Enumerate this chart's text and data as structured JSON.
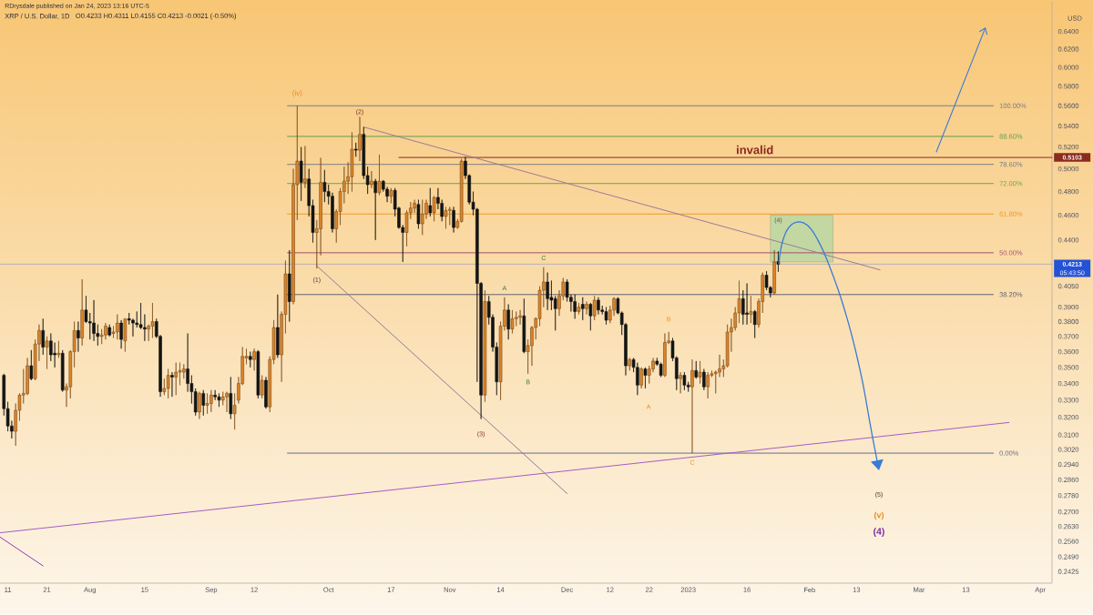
{
  "chart_data": {
    "type": "candlestick",
    "title": "XRP / U.S. Dollar, 1D",
    "subtitle": "O0.4233 H0.4311 L0.4155 C0.4213 -0.0021 (-0.50%)",
    "ylabel": "USD",
    "log": "y",
    "xlim": [
      "2022-07-09",
      "2023-04-04"
    ],
    "ylim": [
      0.2375,
      0.675
    ],
    "xticks": [
      {
        "value": "2022-07-11",
        "label": "11"
      },
      {
        "value": "2022-07-21",
        "label": "21"
      },
      {
        "value": "2022-08-01",
        "label": "Aug"
      },
      {
        "value": "2022-08-15",
        "label": "15"
      },
      {
        "value": "2022-09-01",
        "label": "Sep"
      },
      {
        "value": "2022-09-12",
        "label": "12"
      },
      {
        "value": "2022-10-01",
        "label": "Oct"
      },
      {
        "value": "2022-10-17",
        "label": "17"
      },
      {
        "value": "2022-11-01",
        "label": "Nov"
      },
      {
        "value": "2022-11-14",
        "label": "14"
      },
      {
        "value": "2022-12-01",
        "label": "Dec"
      },
      {
        "value": "2022-12-12",
        "label": "12"
      },
      {
        "value": "2022-12-22",
        "label": "22"
      },
      {
        "value": "2023-01-01",
        "label": "2023"
      },
      {
        "value": "2023-01-16",
        "label": "16"
      },
      {
        "value": "2023-02-01",
        "label": "Feb"
      },
      {
        "value": "2023-02-13",
        "label": "13"
      },
      {
        "value": "2023-03-01",
        "label": "Mar"
      },
      {
        "value": "2023-03-13",
        "label": "13"
      },
      {
        "value": "2023-04-01",
        "label": "Apr"
      }
    ],
    "yticks": [
      {
        "value": 0.64,
        "label": "0.6400"
      },
      {
        "value": 0.62,
        "label": "0.6200"
      },
      {
        "value": 0.6,
        "label": "0.6000"
      },
      {
        "value": 0.58,
        "label": "0.5800"
      },
      {
        "value": 0.56,
        "label": "0.5600"
      },
      {
        "value": 0.54,
        "label": "0.5400"
      },
      {
        "value": 0.52,
        "label": "0.5200"
      },
      {
        "value": 0.5,
        "label": "0.5000"
      },
      {
        "value": 0.48,
        "label": "0.4800"
      },
      {
        "value": 0.46,
        "label": "0.4600"
      },
      {
        "value": 0.44,
        "label": "0.4400"
      },
      {
        "value": 0.405,
        "label": "0.4050"
      },
      {
        "value": 0.39,
        "label": "0.3900"
      },
      {
        "value": 0.38,
        "label": "0.3800"
      },
      {
        "value": 0.37,
        "label": "0.3700"
      },
      {
        "value": 0.36,
        "label": "0.3600"
      },
      {
        "value": 0.35,
        "label": "0.3500"
      },
      {
        "value": 0.34,
        "label": "0.3400"
      },
      {
        "value": 0.33,
        "label": "0.3300"
      },
      {
        "value": 0.32,
        "label": "0.3200"
      },
      {
        "value": 0.31,
        "label": "0.3100"
      },
      {
        "value": 0.302,
        "label": "0.3020"
      },
      {
        "value": 0.294,
        "label": "0.2940"
      },
      {
        "value": 0.286,
        "label": "0.2860"
      },
      {
        "value": 0.278,
        "label": "0.2780"
      },
      {
        "value": 0.27,
        "label": "0.2700"
      },
      {
        "value": 0.263,
        "label": "0.2630"
      },
      {
        "value": 0.256,
        "label": "0.2560"
      },
      {
        "value": 0.249,
        "label": "0.2490"
      },
      {
        "value": 0.2425,
        "label": "0.2425"
      }
    ],
    "ref_lines": [
      {
        "axis": "y",
        "value": 0.4213,
        "label": "0.4213",
        "color": "#98a0b8"
      }
    ],
    "annotations": [
      "RDrysdale published on Jan 24, 2023 13:16 UTC-5",
      "05:43:50",
      {
        "text": "invalid",
        "x": "2023-01-18",
        "y": 0.5103
      },
      {
        "text": "(iv)",
        "x": "2022-09-23",
        "y": 0.56
      },
      {
        "text": "(2)",
        "x": "2022-10-09",
        "y": 0.549
      },
      {
        "text": "(1)",
        "x": "2022-09-28",
        "y": 0.418
      },
      {
        "text": "(3)",
        "x": "2022-11-09",
        "y": 0.319
      },
      {
        "text": "A",
        "x": "2022-11-15",
        "y": 0.397
      },
      {
        "text": "B",
        "x": "2022-11-21",
        "y": 0.346
      },
      {
        "text": "C",
        "x": "2022-11-25",
        "y": 0.419
      },
      "A",
      {
        "text": "B",
        "x": "2022-12-27",
        "y": 0.373
      },
      {
        "text": "C",
        "x": "2023-01-02",
        "y": 0.3
      },
      {
        "text": "(4)",
        "x": "2023-01-24",
        "y": 0.46
      },
      "(5)",
      "(v)",
      "(4)"
    ],
    "series": [
      {
        "type": "line",
        "color": "#c3d7a2",
        "x": [
          "2023-01-22",
          "2023-02-07"
        ],
        "values": [
          null,
          null
        ],
        "lower": [
          0.423,
          0.423
        ],
        "upper": [
          0.46,
          0.46
        ]
      },
      {
        "type": "line",
        "name": "100.00%",
        "color": "#7a7d88",
        "x": [
          "2022-09-20T12:00",
          "2023-03-20"
        ],
        "values": [
          0.56,
          0.56
        ]
      },
      {
        "type": "line",
        "name": "88.60%",
        "color": "#5e9e50",
        "x": [
          "2022-09-20T12:00",
          "2023-03-20"
        ],
        "values": [
          0.53,
          0.53
        ]
      },
      {
        "type": "line",
        "name": "78.60%",
        "color": "#7a7d88",
        "x": [
          "2022-09-20T12:00",
          "2023-03-20"
        ],
        "values": [
          0.504,
          0.504
        ]
      },
      {
        "type": "line",
        "name": "72.00%",
        "color": "#6aa84f",
        "x": [
          "2022-09-20T12:00",
          "2023-03-20"
        ],
        "values": [
          0.487,
          0.487
        ]
      },
      {
        "type": "line",
        "name": "61.80%",
        "color": "#eb9a2e",
        "x": [
          "2022-09-20T12:00",
          "2023-03-20"
        ],
        "values": [
          0.461,
          0.461
        ]
      },
      {
        "type": "line",
        "name": "50.00%",
        "color": "#a6506b",
        "x": [
          "2022-09-20T12:00",
          "2023-03-20"
        ],
        "values": [
          0.43,
          0.43
        ]
      },
      {
        "type": "line",
        "name": "38.20%",
        "color": "#5f6470",
        "x": [
          "2022-09-20T12:00",
          "2023-03-20"
        ],
        "values": [
          0.399,
          0.399
        ]
      },
      {
        "type": "line",
        "name": "0.00%",
        "color": "#5f7088",
        "x": [
          "2022-09-20T12:00",
          "2023-03-20"
        ],
        "values": [
          0.3,
          0.3
        ]
      },
      {
        "type": "line",
        "name": "0.5103",
        "color": "#8b2a1e",
        "x": [
          "2022-10-19",
          "2023-04-04"
        ],
        "values": [
          0.5103,
          0.5103
        ]
      },
      {
        "type": "line",
        "color": "#9b7a9b",
        "x": [
          "2022-10-10",
          "2023-02-19"
        ],
        "values": [
          0.539,
          0.417
        ]
      },
      {
        "type": "line",
        "color": "#8f7a95",
        "x": [
          "2022-09-28",
          "2022-12-01"
        ],
        "values": [
          0.42,
          0.279
        ]
      },
      {
        "type": "line",
        "color": "#a45cc6",
        "x": [
          "2022-07-09",
          "2023-03-24"
        ],
        "values": [
          0.26,
          0.317
        ]
      },
      {
        "type": "line",
        "color": "#8e3bb5",
        "x": [
          "2022-07-09",
          "2022-07-20"
        ],
        "values": [
          0.258,
          0.245
        ]
      },
      {
        "color": "#dc842a",
        "x": [
          "2022-07-13",
          "2022-07-14",
          "2022-07-15",
          "2022-07-16",
          "2022-07-18",
          "2022-07-19",
          "2022-07-21",
          "2022-07-24",
          "2022-07-26",
          "2022-07-27",
          "2022-07-28",
          "2022-07-30",
          "2022-08-04",
          "2022-08-05",
          "2022-08-07",
          "2022-08-08",
          "2022-08-10",
          "2022-08-16",
          "2022-08-17",
          "2022-08-20",
          "2022-08-21",
          "2022-08-23",
          "2022-08-24",
          "2022-08-25",
          "2022-08-29",
          "2022-08-31",
          "2022-09-01",
          "2022-09-04",
          "2022-09-05",
          "2022-09-07",
          "2022-09-08",
          "2022-09-09",
          "2022-09-10",
          "2022-09-12",
          "2022-09-14",
          "2022-09-16",
          "2022-09-17",
          "2022-09-19",
          "2022-09-20",
          "2022-09-22",
          "2022-09-23",
          "2022-09-25",
          "2022-09-28",
          "2022-09-29",
          "2022-10-03",
          "2022-10-04",
          "2022-10-05",
          "2022-10-06",
          "2022-10-07",
          "2022-10-09",
          "2022-10-12",
          "2022-10-14",
          "2022-10-17",
          "2022-10-21",
          "2022-10-22",
          "2022-10-23",
          "2022-10-25",
          "2022-10-26",
          "2022-10-28",
          "2022-10-31",
          "2022-11-01",
          "2022-11-03",
          "2022-11-04",
          "2022-11-10",
          "2022-11-14",
          "2022-11-15",
          "2022-11-17",
          "2022-11-18",
          "2022-11-19",
          "2022-11-21",
          "2022-11-22",
          "2022-11-23",
          "2022-11-24",
          "2022-11-25",
          "2022-11-29",
          "2022-11-30",
          "2022-12-04",
          "2022-12-06",
          "2022-12-08",
          "2022-12-12",
          "2022-12-13",
          "2022-12-17",
          "2022-12-20",
          "2022-12-22",
          "2022-12-23",
          "2022-12-26",
          "2022-12-27",
          "2022-12-30",
          "2023-01-02",
          "2023-01-04",
          "2023-01-06",
          "2023-01-07",
          "2023-01-08",
          "2023-01-09",
          "2023-01-10",
          "2023-01-11",
          "2023-01-12",
          "2023-01-13",
          "2023-01-14",
          "2023-01-17",
          "2023-01-19",
          "2023-01-20",
          "2023-01-23"
        ],
        "ohlc": [
          [
            0.312,
            0.328,
            0.304,
            0.324
          ],
          [
            0.324,
            0.334,
            0.318,
            0.333
          ],
          [
            0.333,
            0.349,
            0.328,
            0.334
          ],
          [
            0.334,
            0.356,
            0.333,
            0.351
          ],
          [
            0.343,
            0.368,
            0.342,
            0.365
          ],
          [
            0.365,
            0.378,
            0.354,
            0.374
          ],
          [
            0.363,
            0.37,
            0.349,
            0.367
          ],
          [
            0.358,
            0.367,
            0.356,
            0.359
          ],
          [
            0.336,
            0.34,
            0.326,
            0.338
          ],
          [
            0.338,
            0.361,
            0.331,
            0.36
          ],
          [
            0.36,
            0.38,
            0.35,
            0.374
          ],
          [
            0.369,
            0.41,
            0.364,
            0.388
          ],
          [
            0.37,
            0.375,
            0.365,
            0.371
          ],
          [
            0.371,
            0.379,
            0.368,
            0.377
          ],
          [
            0.372,
            0.377,
            0.369,
            0.373
          ],
          [
            0.373,
            0.385,
            0.368,
            0.379
          ],
          [
            0.367,
            0.382,
            0.36,
            0.382
          ],
          [
            0.375,
            0.378,
            0.367,
            0.377
          ],
          [
            0.377,
            0.393,
            0.369,
            0.38
          ],
          [
            0.335,
            0.343,
            0.333,
            0.337
          ],
          [
            0.337,
            0.349,
            0.331,
            0.345
          ],
          [
            0.344,
            0.353,
            0.333,
            0.347
          ],
          [
            0.347,
            0.353,
            0.339,
            0.348
          ],
          [
            0.347,
            0.352,
            0.343,
            0.349
          ],
          [
            0.323,
            0.335,
            0.319,
            0.334
          ],
          [
            0.327,
            0.334,
            0.322,
            0.328
          ],
          [
            0.328,
            0.336,
            0.323,
            0.333
          ],
          [
            0.33,
            0.335,
            0.327,
            0.332
          ],
          [
            0.332,
            0.335,
            0.323,
            0.334
          ],
          [
            0.322,
            0.334,
            0.313,
            0.327
          ],
          [
            0.33,
            0.344,
            0.328,
            0.34
          ],
          [
            0.34,
            0.363,
            0.339,
            0.357
          ],
          [
            0.356,
            0.362,
            0.352,
            0.357
          ],
          [
            0.355,
            0.362,
            0.348,
            0.36
          ],
          [
            0.333,
            0.345,
            0.331,
            0.342
          ],
          [
            0.326,
            0.357,
            0.323,
            0.355
          ],
          [
            0.355,
            0.381,
            0.352,
            0.376
          ],
          [
            0.358,
            0.387,
            0.341,
            0.385
          ],
          [
            0.385,
            0.424,
            0.372,
            0.414
          ],
          [
            0.394,
            0.5,
            0.392,
            0.486
          ],
          [
            0.486,
            0.56,
            0.456,
            0.507
          ],
          [
            0.488,
            0.521,
            0.483,
            0.491
          ],
          [
            0.446,
            0.456,
            0.418,
            0.449
          ],
          [
            0.449,
            0.51,
            0.428,
            0.488
          ],
          [
            0.449,
            0.465,
            0.438,
            0.463
          ],
          [
            0.463,
            0.483,
            0.452,
            0.48
          ],
          [
            0.48,
            0.502,
            0.47,
            0.489
          ],
          [
            0.489,
            0.506,
            0.478,
            0.493
          ],
          [
            0.493,
            0.534,
            0.48,
            0.518
          ],
          [
            0.517,
            0.549,
            0.507,
            0.532
          ],
          [
            0.486,
            0.498,
            0.483,
            0.489
          ],
          [
            0.479,
            0.513,
            0.477,
            0.489
          ],
          [
            0.476,
            0.483,
            0.47,
            0.481
          ],
          [
            0.446,
            0.464,
            0.435,
            0.462
          ],
          [
            0.462,
            0.471,
            0.457,
            0.466
          ],
          [
            0.466,
            0.473,
            0.462,
            0.47
          ],
          [
            0.453,
            0.473,
            0.444,
            0.461
          ],
          [
            0.461,
            0.473,
            0.457,
            0.47
          ],
          [
            0.462,
            0.476,
            0.455,
            0.475
          ],
          [
            0.459,
            0.467,
            0.449,
            0.464
          ],
          [
            0.464,
            0.467,
            0.452,
            0.465
          ],
          [
            0.45,
            0.457,
            0.449,
            0.455
          ],
          [
            0.455,
            0.509,
            0.454,
            0.507
          ],
          [
            0.333,
            0.402,
            0.329,
            0.394
          ],
          [
            0.341,
            0.38,
            0.33,
            0.377
          ],
          [
            0.377,
            0.397,
            0.374,
            0.388
          ],
          [
            0.375,
            0.388,
            0.372,
            0.382
          ],
          [
            0.382,
            0.387,
            0.377,
            0.383
          ],
          [
            0.383,
            0.388,
            0.378,
            0.384
          ],
          [
            0.36,
            0.368,
            0.346,
            0.364
          ],
          [
            0.364,
            0.377,
            0.351,
            0.376
          ],
          [
            0.376,
            0.383,
            0.368,
            0.382
          ],
          [
            0.382,
            0.405,
            0.377,
            0.402
          ],
          [
            0.402,
            0.419,
            0.39,
            0.408
          ],
          [
            0.389,
            0.402,
            0.384,
            0.398
          ],
          [
            0.398,
            0.411,
            0.395,
            0.408
          ],
          [
            0.387,
            0.393,
            0.385,
            0.39
          ],
          [
            0.389,
            0.394,
            0.385,
            0.392
          ],
          [
            0.384,
            0.398,
            0.381,
            0.395
          ],
          [
            0.381,
            0.391,
            0.379,
            0.388
          ],
          [
            0.388,
            0.397,
            0.384,
            0.396
          ],
          [
            0.351,
            0.356,
            0.348,
            0.355
          ],
          [
            0.339,
            0.35,
            0.337,
            0.349
          ],
          [
            0.345,
            0.351,
            0.34,
            0.349
          ],
          [
            0.349,
            0.356,
            0.347,
            0.354
          ],
          [
            0.345,
            0.372,
            0.344,
            0.366
          ],
          [
            0.366,
            0.373,
            0.365,
            0.367
          ],
          [
            0.343,
            0.347,
            0.334,
            0.345
          ],
          [
            0.338,
            0.355,
            0.3,
            0.348
          ],
          [
            0.344,
            0.354,
            0.34,
            0.347
          ],
          [
            0.338,
            0.347,
            0.331,
            0.345
          ],
          [
            0.345,
            0.348,
            0.344,
            0.346
          ],
          [
            0.346,
            0.348,
            0.334,
            0.347
          ],
          [
            0.347,
            0.358,
            0.344,
            0.349
          ],
          [
            0.349,
            0.355,
            0.344,
            0.351
          ],
          [
            0.351,
            0.378,
            0.35,
            0.373
          ],
          [
            0.373,
            0.382,
            0.36,
            0.376
          ],
          [
            0.376,
            0.39,
            0.374,
            0.386
          ],
          [
            0.386,
            0.409,
            0.379,
            0.396
          ],
          [
            0.385,
            0.398,
            0.379,
            0.387
          ],
          [
            0.378,
            0.396,
            0.376,
            0.394
          ],
          [
            0.394,
            0.415,
            0.386,
            0.413
          ],
          [
            0.4,
            0.432,
            0.399,
            0.423
          ]
        ]
      },
      {
        "color": "#141414",
        "x": [
          "2022-07-10",
          "2022-07-11",
          "2022-07-12",
          "2022-07-17",
          "2022-07-20",
          "2022-07-22",
          "2022-07-23",
          "2022-07-25",
          "2022-07-29",
          "2022-07-31",
          "2022-08-01",
          "2022-08-02",
          "2022-08-03",
          "2022-08-06",
          "2022-08-09",
          "2022-08-11",
          "2022-08-12",
          "2022-08-13",
          "2022-08-14",
          "2022-08-15",
          "2022-08-18",
          "2022-08-19",
          "2022-08-22",
          "2022-08-26",
          "2022-08-27",
          "2022-08-28",
          "2022-08-30",
          "2022-09-02",
          "2022-09-03",
          "2022-09-06",
          "2022-09-11",
          "2022-09-13",
          "2022-09-15",
          "2022-09-18",
          "2022-09-21",
          "2022-09-24",
          "2022-09-26",
          "2022-09-27",
          "2022-09-30",
          "2022-10-01",
          "2022-10-02",
          "2022-10-08",
          "2022-10-10",
          "2022-10-11",
          "2022-10-13",
          "2022-10-15",
          "2022-10-16",
          "2022-10-18",
          "2022-10-19",
          "2022-10-20",
          "2022-10-24",
          "2022-10-27",
          "2022-10-29",
          "2022-10-30",
          "2022-11-02",
          "2022-11-05",
          "2022-11-06",
          "2022-11-07",
          "2022-11-08",
          "2022-11-09",
          "2022-11-11",
          "2022-11-12",
          "2022-11-13",
          "2022-11-16",
          "2022-11-20",
          "2022-11-26",
          "2022-11-27",
          "2022-11-28",
          "2022-12-01",
          "2022-12-02",
          "2022-12-03",
          "2022-12-05",
          "2022-12-07",
          "2022-12-09",
          "2022-12-10",
          "2022-12-11",
          "2022-12-14",
          "2022-12-15",
          "2022-12-16",
          "2022-12-18",
          "2022-12-19",
          "2022-12-21",
          "2022-12-24",
          "2022-12-25",
          "2022-12-28",
          "2022-12-29",
          "2022-12-31",
          "2023-01-01",
          "2023-01-03",
          "2023-01-05",
          "2023-01-15",
          "2023-01-16",
          "2023-01-18",
          "2023-01-21",
          "2023-01-22",
          "2023-01-24"
        ],
        "ohlc": [
          [
            0.345,
            0.346,
            0.321,
            0.325
          ],
          [
            0.325,
            0.329,
            0.312,
            0.315
          ],
          [
            0.315,
            0.318,
            0.308,
            0.312
          ],
          [
            0.351,
            0.361,
            0.342,
            0.343
          ],
          [
            0.374,
            0.382,
            0.358,
            0.363
          ],
          [
            0.367,
            0.372,
            0.354,
            0.358
          ],
          [
            0.359,
            0.366,
            0.35,
            0.358
          ],
          [
            0.359,
            0.361,
            0.335,
            0.336
          ],
          [
            0.374,
            0.38,
            0.36,
            0.369
          ],
          [
            0.388,
            0.398,
            0.379,
            0.38
          ],
          [
            0.38,
            0.386,
            0.368,
            0.379
          ],
          [
            0.379,
            0.395,
            0.367,
            0.372
          ],
          [
            0.372,
            0.378,
            0.364,
            0.37
          ],
          [
            0.376,
            0.378,
            0.37,
            0.371
          ],
          [
            0.379,
            0.381,
            0.362,
            0.368
          ],
          [
            0.382,
            0.386,
            0.378,
            0.381
          ],
          [
            0.381,
            0.382,
            0.37,
            0.379
          ],
          [
            0.379,
            0.387,
            0.376,
            0.378
          ],
          [
            0.378,
            0.393,
            0.375,
            0.376
          ],
          [
            0.376,
            0.385,
            0.367,
            0.375
          ],
          [
            0.38,
            0.382,
            0.369,
            0.37
          ],
          [
            0.37,
            0.371,
            0.332,
            0.335
          ],
          [
            0.345,
            0.347,
            0.332,
            0.344
          ],
          [
            0.349,
            0.372,
            0.335,
            0.34
          ],
          [
            0.34,
            0.345,
            0.328,
            0.335
          ],
          [
            0.335,
            0.337,
            0.321,
            0.323
          ],
          [
            0.334,
            0.336,
            0.321,
            0.327
          ],
          [
            0.333,
            0.336,
            0.33,
            0.332
          ],
          [
            0.332,
            0.334,
            0.326,
            0.33
          ],
          [
            0.334,
            0.344,
            0.319,
            0.322
          ],
          [
            0.357,
            0.36,
            0.35,
            0.355
          ],
          [
            0.36,
            0.361,
            0.331,
            0.333
          ],
          [
            0.342,
            0.344,
            0.325,
            0.326
          ],
          [
            0.376,
            0.399,
            0.356,
            0.358
          ],
          [
            0.414,
            0.432,
            0.38,
            0.394
          ],
          [
            0.507,
            0.52,
            0.472,
            0.488
          ],
          [
            0.491,
            0.5,
            0.459,
            0.468
          ],
          [
            0.468,
            0.473,
            0.438,
            0.446
          ],
          [
            0.488,
            0.499,
            0.471,
            0.48
          ],
          [
            0.48,
            0.486,
            0.469,
            0.476
          ],
          [
            0.476,
            0.479,
            0.446,
            0.449
          ],
          [
            0.518,
            0.524,
            0.511,
            0.517
          ],
          [
            0.532,
            0.539,
            0.491,
            0.494
          ],
          [
            0.494,
            0.502,
            0.478,
            0.486
          ],
          [
            0.489,
            0.491,
            0.44,
            0.479
          ],
          [
            0.489,
            0.49,
            0.48,
            0.482
          ],
          [
            0.482,
            0.484,
            0.471,
            0.476
          ],
          [
            0.481,
            0.483,
            0.459,
            0.465
          ],
          [
            0.466,
            0.467,
            0.449,
            0.45
          ],
          [
            0.45,
            0.452,
            0.423,
            0.446
          ],
          [
            0.469,
            0.473,
            0.449,
            0.453
          ],
          [
            0.468,
            0.483,
            0.459,
            0.462
          ],
          [
            0.475,
            0.483,
            0.465,
            0.47
          ],
          [
            0.47,
            0.473,
            0.455,
            0.459
          ],
          [
            0.464,
            0.467,
            0.446,
            0.45
          ],
          [
            0.507,
            0.511,
            0.491,
            0.494
          ],
          [
            0.494,
            0.495,
            0.469,
            0.471
          ],
          [
            0.471,
            0.48,
            0.46,
            0.465
          ],
          [
            0.465,
            0.466,
            0.341,
            0.407
          ],
          [
            0.407,
            0.408,
            0.319,
            0.333
          ],
          [
            0.394,
            0.398,
            0.378,
            0.383
          ],
          [
            0.383,
            0.385,
            0.36,
            0.363
          ],
          [
            0.363,
            0.366,
            0.333,
            0.341
          ],
          [
            0.388,
            0.392,
            0.368,
            0.375
          ],
          [
            0.384,
            0.396,
            0.359,
            0.36
          ],
          [
            0.408,
            0.415,
            0.388,
            0.396
          ],
          [
            0.397,
            0.409,
            0.388,
            0.395
          ],
          [
            0.396,
            0.398,
            0.374,
            0.389
          ],
          [
            0.408,
            0.41,
            0.394,
            0.397
          ],
          [
            0.397,
            0.399,
            0.387,
            0.394
          ],
          [
            0.394,
            0.399,
            0.382,
            0.387
          ],
          [
            0.392,
            0.397,
            0.381,
            0.389
          ],
          [
            0.392,
            0.393,
            0.374,
            0.384
          ],
          [
            0.395,
            0.397,
            0.385,
            0.388
          ],
          [
            0.388,
            0.391,
            0.385,
            0.387
          ],
          [
            0.387,
            0.39,
            0.378,
            0.381
          ],
          [
            0.396,
            0.397,
            0.385,
            0.386
          ],
          [
            0.386,
            0.387,
            0.371,
            0.378
          ],
          [
            0.378,
            0.379,
            0.345,
            0.351
          ],
          [
            0.355,
            0.356,
            0.347,
            0.35
          ],
          [
            0.35,
            0.353,
            0.333,
            0.339
          ],
          [
            0.349,
            0.35,
            0.337,
            0.345
          ],
          [
            0.354,
            0.356,
            0.351,
            0.352
          ],
          [
            0.352,
            0.353,
            0.344,
            0.345
          ],
          [
            0.367,
            0.369,
            0.354,
            0.356
          ],
          [
            0.356,
            0.357,
            0.336,
            0.343
          ],
          [
            0.345,
            0.347,
            0.336,
            0.339
          ],
          [
            0.339,
            0.341,
            0.335,
            0.338
          ],
          [
            0.348,
            0.354,
            0.343,
            0.344
          ],
          [
            0.347,
            0.349,
            0.336,
            0.338
          ],
          [
            0.396,
            0.402,
            0.378,
            0.385
          ],
          [
            0.386,
            0.407,
            0.378,
            0.385
          ],
          [
            0.387,
            0.388,
            0.369,
            0.378
          ],
          [
            0.413,
            0.416,
            0.402,
            0.404
          ],
          [
            0.404,
            0.405,
            0.397,
            0.4
          ],
          [
            0.4233,
            0.4311,
            0.4155,
            0.4213
          ]
        ]
      }
    ]
  }
}
